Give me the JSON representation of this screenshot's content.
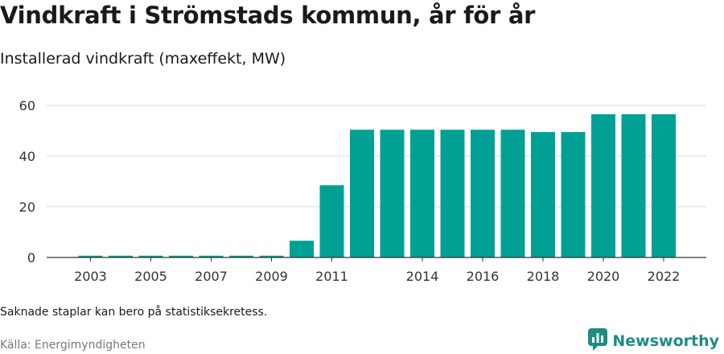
{
  "title": "Vindkraft i Strömstads kommun, år för år",
  "subtitle": "Installerad vindkraft (maxeffekt, MW)",
  "note": "Saknade staplar kan bero på statistiksekretess.",
  "source": "Källa: Energimyndigheten",
  "brand": {
    "name": "Newsworthy",
    "icon": "newsworthy-logo-icon",
    "color": "#1e8c81"
  },
  "chart_data": {
    "type": "bar",
    "categories": [
      "2003",
      "2004",
      "2005",
      "2006",
      "2007",
      "2008",
      "2009",
      "2010",
      "2011",
      "2012",
      "2013",
      "2014",
      "2015",
      "2016",
      "2017",
      "2018",
      "2019",
      "2020",
      "2021",
      "2022"
    ],
    "values": [
      0.7,
      0.7,
      0.7,
      0.7,
      0.7,
      0.7,
      0.7,
      6.6,
      28.5,
      50.4,
      50.4,
      50.4,
      50.4,
      50.4,
      50.4,
      49.5,
      49.5,
      56.5,
      56.5,
      56.5
    ],
    "x_tick_labels": [
      "2003",
      "2005",
      "2007",
      "2009",
      "2011",
      "2014",
      "2016",
      "2018",
      "2020",
      "2022"
    ],
    "y_ticks": [
      0,
      20,
      40,
      60
    ],
    "ylim": [
      0,
      60
    ],
    "xlabel": "",
    "ylabel": "",
    "grid": true,
    "bar_color": "#00a194"
  }
}
